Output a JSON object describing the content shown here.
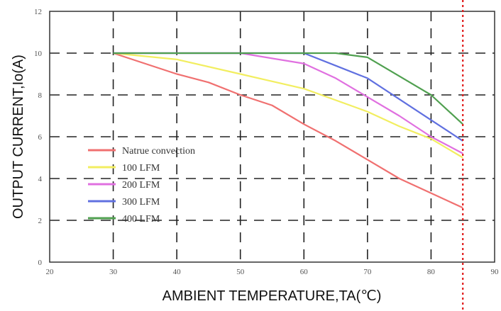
{
  "chart_data": {
    "type": "line",
    "xlabel": "AMBIENT TEMPERATURE,TA(℃)",
    "ylabel": "OUTPUT CURRENT,Io(A)",
    "xlim": [
      20,
      90
    ],
    "ylim": [
      0,
      12
    ],
    "xticks": [
      20,
      30,
      40,
      50,
      60,
      70,
      80,
      90
    ],
    "yticks": [
      0,
      2,
      4,
      6,
      8,
      10,
      12
    ],
    "grid": "dashed",
    "legend_position": "bottom-left",
    "reference_line": {
      "x": 85,
      "color": "#e01818",
      "style": "dotted"
    },
    "series": [
      {
        "name": "Natrue convection",
        "color": "#f07070",
        "x": [
          30,
          40,
          45,
          50,
          55,
          60,
          65,
          70,
          75,
          80,
          85
        ],
        "y": [
          10,
          9.0,
          8.6,
          8.0,
          7.5,
          6.6,
          5.8,
          4.9,
          4.0,
          3.3,
          2.6
        ]
      },
      {
        "name": "100 LFM",
        "color": "#f2ee60",
        "x": [
          30,
          40,
          50,
          60,
          70,
          75,
          80,
          85
        ],
        "y": [
          10,
          9.7,
          9.0,
          8.3,
          7.2,
          6.5,
          5.9,
          5.0
        ]
      },
      {
        "name": "200 LFM",
        "color": "#e070e0",
        "x": [
          30,
          50,
          60,
          65,
          70,
          75,
          80,
          85
        ],
        "y": [
          10,
          10,
          9.5,
          8.8,
          7.9,
          7.0,
          6.0,
          5.2
        ]
      },
      {
        "name": "300 LFM",
        "color": "#6070e0",
        "x": [
          30,
          60,
          65,
          70,
          75,
          80,
          85
        ],
        "y": [
          10,
          10,
          9.4,
          8.8,
          7.8,
          6.8,
          5.8
        ]
      },
      {
        "name": "400 LFM",
        "color": "#50a050",
        "x": [
          30,
          65,
          70,
          75,
          80,
          85
        ],
        "y": [
          10,
          10,
          9.8,
          8.9,
          8.0,
          6.6
        ]
      }
    ]
  }
}
